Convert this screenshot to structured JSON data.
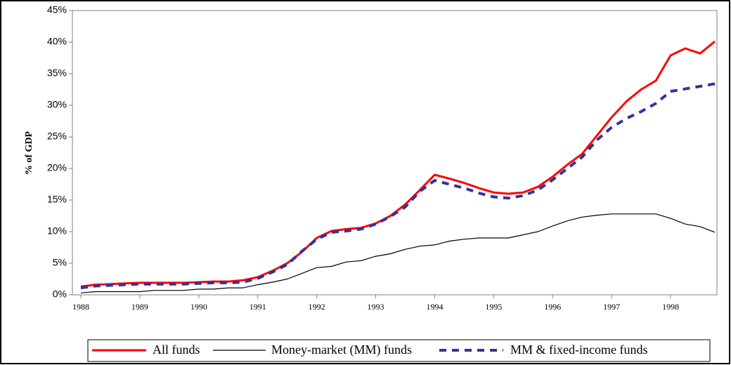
{
  "chart_data": {
    "type": "line",
    "y_label": "% of GDP",
    "categories": [
      "1988",
      null,
      null,
      null,
      "1989",
      null,
      null,
      null,
      "1990",
      null,
      null,
      null,
      "1991",
      null,
      null,
      null,
      "1992",
      null,
      null,
      null,
      "1993",
      null,
      null,
      null,
      "1994",
      null,
      null,
      null,
      "1995",
      null,
      null,
      null,
      "1996",
      null,
      null,
      null,
      "1997",
      null,
      null,
      null,
      "1998",
      null,
      null,
      null
    ],
    "series": [
      {
        "name": "All funds",
        "color": "#ff0000",
        "style": "solid",
        "values": [
          1.3,
          1.6,
          1.7,
          1.8,
          1.9,
          1.9,
          1.9,
          1.9,
          2.0,
          2.1,
          2.1,
          2.3,
          2.8,
          3.8,
          5.0,
          6.8,
          9.0,
          10.1,
          10.4,
          10.6,
          11.3,
          12.5,
          14.3,
          16.6,
          19.0,
          18.4,
          17.7,
          16.9,
          16.2,
          16.0,
          16.2,
          17.1,
          18.7,
          20.6,
          22.3,
          25.2,
          28.1,
          30.6,
          32.5,
          33.9,
          37.9,
          39.0,
          38.2,
          40.1
        ]
      },
      {
        "name": "Money-market (MM) funds",
        "color": "#000000",
        "style": "thin",
        "values": [
          0.3,
          0.5,
          0.5,
          0.5,
          0.5,
          0.7,
          0.7,
          0.7,
          0.9,
          0.9,
          1.1,
          1.1,
          1.6,
          2.0,
          2.5,
          3.4,
          4.3,
          4.5,
          5.2,
          5.4,
          6.1,
          6.5,
          7.2,
          7.7,
          7.9,
          8.5,
          8.8,
          9.0,
          9.0,
          9.0,
          9.5,
          10.0,
          10.9,
          11.7,
          12.3,
          12.6,
          12.8,
          12.8,
          12.8,
          12.8,
          12.1,
          11.2,
          10.8,
          9.9
        ]
      },
      {
        "name": "MM & fixed-income funds",
        "color": "#333399",
        "style": "dashed",
        "values": [
          1.1,
          1.4,
          1.5,
          1.6,
          1.7,
          1.7,
          1.7,
          1.7,
          1.8,
          1.9,
          1.9,
          2.0,
          2.6,
          3.6,
          4.8,
          6.9,
          8.8,
          9.9,
          10.1,
          10.4,
          11.2,
          12.4,
          13.9,
          16.4,
          18.1,
          17.5,
          16.9,
          16.1,
          15.5,
          15.3,
          15.7,
          16.6,
          18.2,
          20.0,
          21.8,
          24.5,
          26.5,
          27.9,
          29.0,
          30.3,
          32.2,
          32.6,
          33.0,
          33.4
        ]
      }
    ],
    "ylim": [
      0,
      45
    ],
    "yticks": [
      {
        "value": 0,
        "label": "0%"
      },
      {
        "value": 5,
        "label": "5%"
      },
      {
        "value": 10,
        "label": "10%"
      },
      {
        "value": 15,
        "label": "15%"
      },
      {
        "value": 20,
        "label": "20%"
      },
      {
        "value": 25,
        "label": "25%"
      },
      {
        "value": 30,
        "label": "30%"
      },
      {
        "value": 35,
        "label": "35%"
      },
      {
        "value": 40,
        "label": "40%"
      },
      {
        "value": 45,
        "label": "45%"
      }
    ],
    "grid": false,
    "legend": "bottom"
  }
}
